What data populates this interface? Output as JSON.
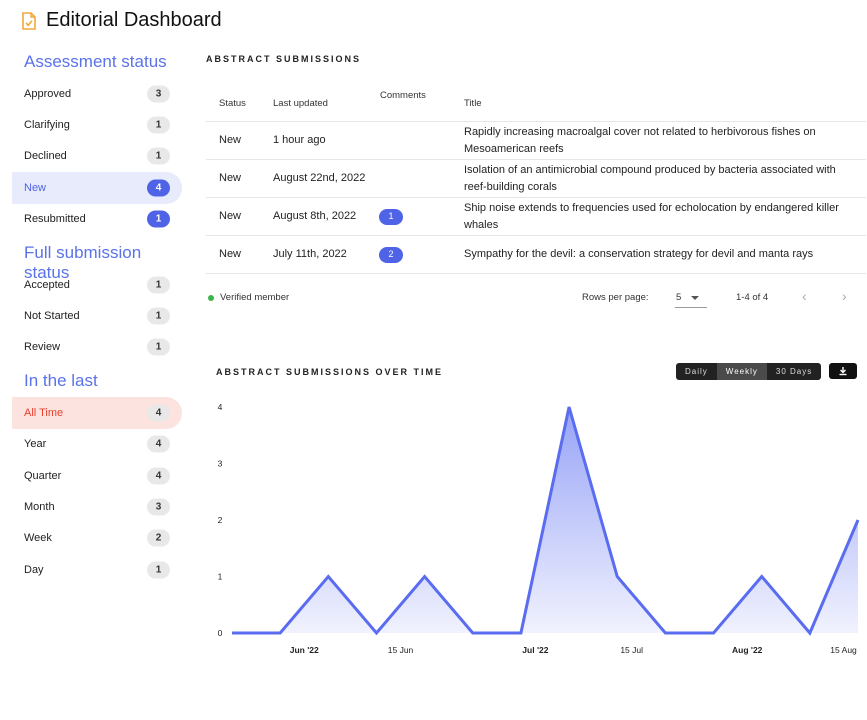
{
  "app": {
    "title": "Editorial Dashboard",
    "icon": "document-check-icon"
  },
  "sidebar": {
    "assessment_heading": "Assessment status",
    "assessment": [
      {
        "label": "Approved",
        "count": "3"
      },
      {
        "label": "Clarifying",
        "count": "1"
      },
      {
        "label": "Declined",
        "count": "1"
      },
      {
        "label": "New",
        "count": "4"
      },
      {
        "label": "Resubmitted",
        "count": "1"
      }
    ],
    "full_heading": "Full submission status",
    "full": [
      {
        "label": "Accepted",
        "count": "1"
      },
      {
        "label": "Not Started",
        "count": "1"
      },
      {
        "label": "Review",
        "count": "1"
      }
    ],
    "last_heading": "In the last",
    "last": [
      {
        "label": "All Time",
        "count": "4"
      },
      {
        "label": "Year",
        "count": "4"
      },
      {
        "label": "Quarter",
        "count": "4"
      },
      {
        "label": "Month",
        "count": "3"
      },
      {
        "label": "Week",
        "count": "2"
      },
      {
        "label": "Day",
        "count": "1"
      }
    ]
  },
  "table": {
    "title": "ABSTRACT SUBMISSIONS",
    "headers": {
      "status": "Status",
      "updated": "Last updated",
      "comments": "Comments",
      "title": "Title"
    },
    "rows": [
      {
        "status": "New",
        "updated": "1 hour ago",
        "comments": "",
        "title": "Rapidly increasing macroalgal cover not related to herbivorous fishes on Mesoamerican reefs"
      },
      {
        "status": "New",
        "updated": "August 22nd, 2022",
        "comments": "",
        "title": "Isolation of an antimicrobial compound produced by bacteria associated with reef-building corals"
      },
      {
        "status": "New",
        "updated": "August 8th, 2022",
        "comments": "1",
        "title": "Ship noise extends to frequencies used for echolocation by endangered killer whales"
      },
      {
        "status": "New",
        "updated": "July 11th, 2022",
        "comments": "2",
        "title": "Sympathy for the devil: a conservation strategy for devil and manta rays"
      }
    ],
    "footer": {
      "verified_label": "Verified member",
      "rows_per_page_label": "Rows per page:",
      "rows_per_page_value": "5",
      "range": "1-4 of 4",
      "prev": "‹",
      "next": "›"
    }
  },
  "chart_section": {
    "title": "ABSTRACT SUBMISSIONS OVER TIME",
    "ranges": [
      "Daily",
      "Weekly",
      "30 Days"
    ],
    "active_range": "Weekly",
    "download_icon": "download-icon"
  },
  "chart_data": {
    "type": "area",
    "x_index": [
      0,
      1,
      2,
      3,
      4,
      5,
      6,
      7,
      8,
      9,
      10,
      11,
      12,
      13
    ],
    "values": [
      0,
      0,
      1,
      0,
      1,
      0,
      0,
      4,
      1,
      0,
      0,
      1,
      0,
      2
    ],
    "x_ticks": [
      {
        "at": 1.5,
        "label": "Jun '22",
        "bold": true
      },
      {
        "at": 3.5,
        "label": "15 Jun",
        "bold": false
      },
      {
        "at": 6.3,
        "label": "Jul '22",
        "bold": true
      },
      {
        "at": 8.3,
        "label": "15 Jul",
        "bold": false
      },
      {
        "at": 10.7,
        "label": "Aug '22",
        "bold": true
      },
      {
        "at": 12.7,
        "label": "15 Aug",
        "bold": false
      }
    ],
    "y_ticks": [
      0,
      1,
      2,
      3,
      4
    ],
    "ylim": [
      0,
      4
    ],
    "title": "ABSTRACT SUBMISSIONS OVER TIME",
    "line_color": "#5a6cf0",
    "fill_color": "#8593f5"
  }
}
